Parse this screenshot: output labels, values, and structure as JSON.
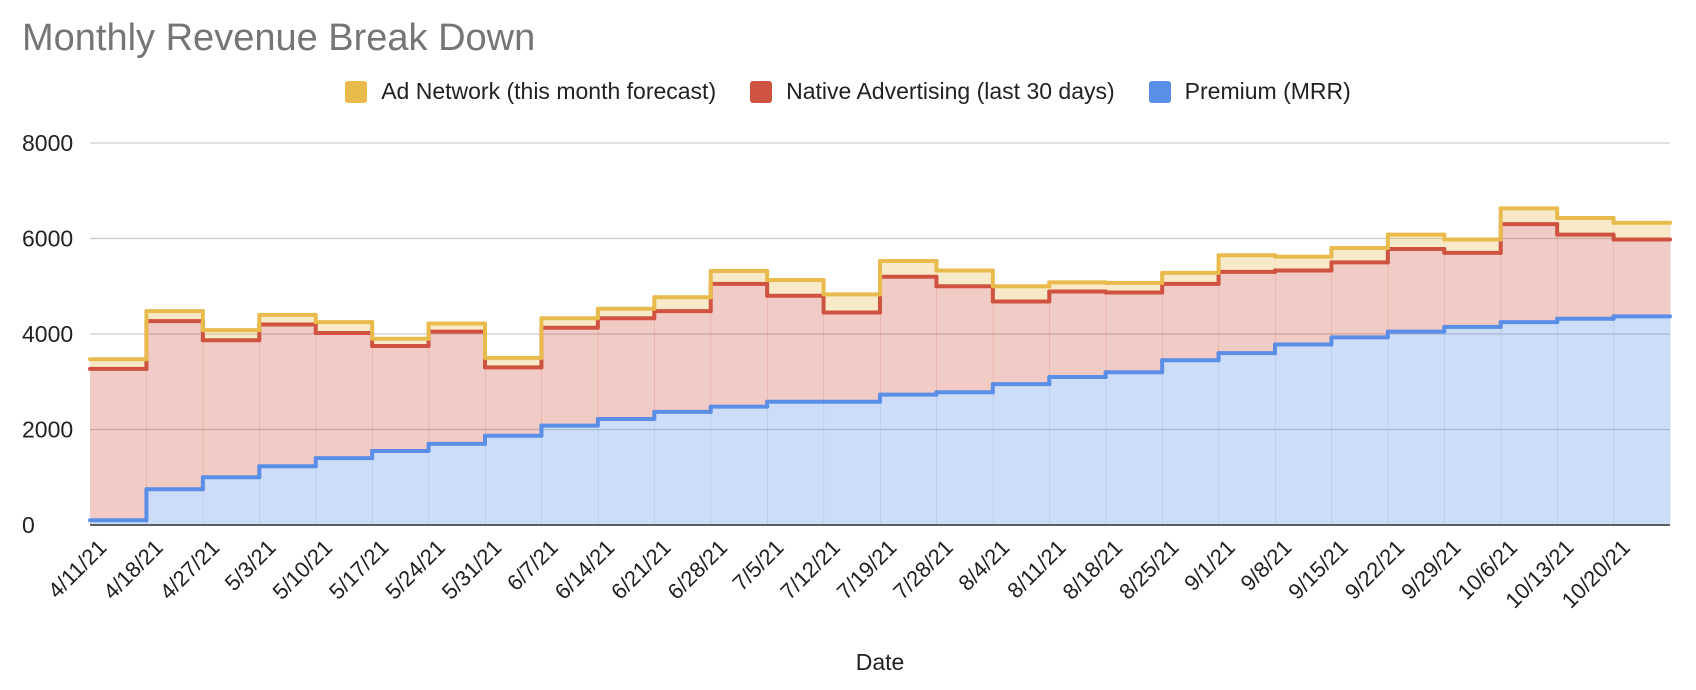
{
  "chart_data": {
    "type": "stepped-area",
    "title": "Monthly Revenue Break Down",
    "x_label": "Date",
    "categories": [
      "4/11/21",
      "4/18/21",
      "4/27/21",
      "5/3/21",
      "5/10/21",
      "5/17/21",
      "5/24/21",
      "5/31/21",
      "6/7/21",
      "6/14/21",
      "6/21/21",
      "6/28/21",
      "7/5/21",
      "7/12/21",
      "7/19/21",
      "7/28/21",
      "8/4/21",
      "8/11/21",
      "8/18/21",
      "8/25/21",
      "9/1/21",
      "9/8/21",
      "9/15/21",
      "9/22/21",
      "9/29/21",
      "10/6/21",
      "10/13/21",
      "10/20/21"
    ],
    "series": [
      {
        "name": "Ad Network (this month forecast)",
        "color": "#e8bb4c",
        "values": [
          200,
          210,
          210,
          200,
          230,
          150,
          170,
          200,
          200,
          200,
          290,
          270,
          330,
          380,
          330,
          330,
          320,
          190,
          200,
          230,
          350,
          290,
          300,
          300,
          280,
          330,
          350,
          350
        ]
      },
      {
        "name": "Native Advertising (last 30 days)",
        "color": "#cf5340",
        "values": [
          3170,
          3520,
          2870,
          2970,
          2620,
          2200,
          2350,
          1430,
          2050,
          2110,
          2110,
          2570,
          2220,
          1870,
          2470,
          2220,
          1730,
          1790,
          1670,
          1600,
          1700,
          1550,
          1570,
          1730,
          1550,
          2050,
          1760,
          1610
        ]
      },
      {
        "name": "Premium (MRR)",
        "color": "#5b8ee6",
        "values": [
          100,
          750,
          1000,
          1230,
          1400,
          1550,
          1700,
          1870,
          2080,
          2220,
          2370,
          2480,
          2580,
          2580,
          2730,
          2780,
          2950,
          3100,
          3200,
          3450,
          3600,
          3780,
          3930,
          4050,
          4150,
          4250,
          4320,
          4370
        ]
      }
    ],
    "stacked": true,
    "ylim": [
      0,
      8000
    ],
    "yticks": [
      0,
      2000,
      4000,
      6000,
      8000
    ],
    "grid": true,
    "legend": "top"
  }
}
